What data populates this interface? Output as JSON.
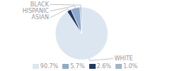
{
  "chart_data": {
    "type": "pie",
    "categories": [
      "WHITE",
      "ASIAN",
      "HISPANIC",
      "BLACK"
    ],
    "values": [
      90.7,
      2.6,
      5.7,
      1.0
    ],
    "colors": [
      "#dce6f1",
      "#1f3864",
      "#8eaacc",
      "#a0b4c8"
    ],
    "legend": "bottom",
    "legend_labels": [
      "90.7%",
      "5.7%",
      "2.6%",
      "1.0%"
    ],
    "legend_colors": [
      "#dce6f1",
      "#8eaacc",
      "#1f3864",
      "#a0b4c8"
    ],
    "text_color": "#999999"
  }
}
